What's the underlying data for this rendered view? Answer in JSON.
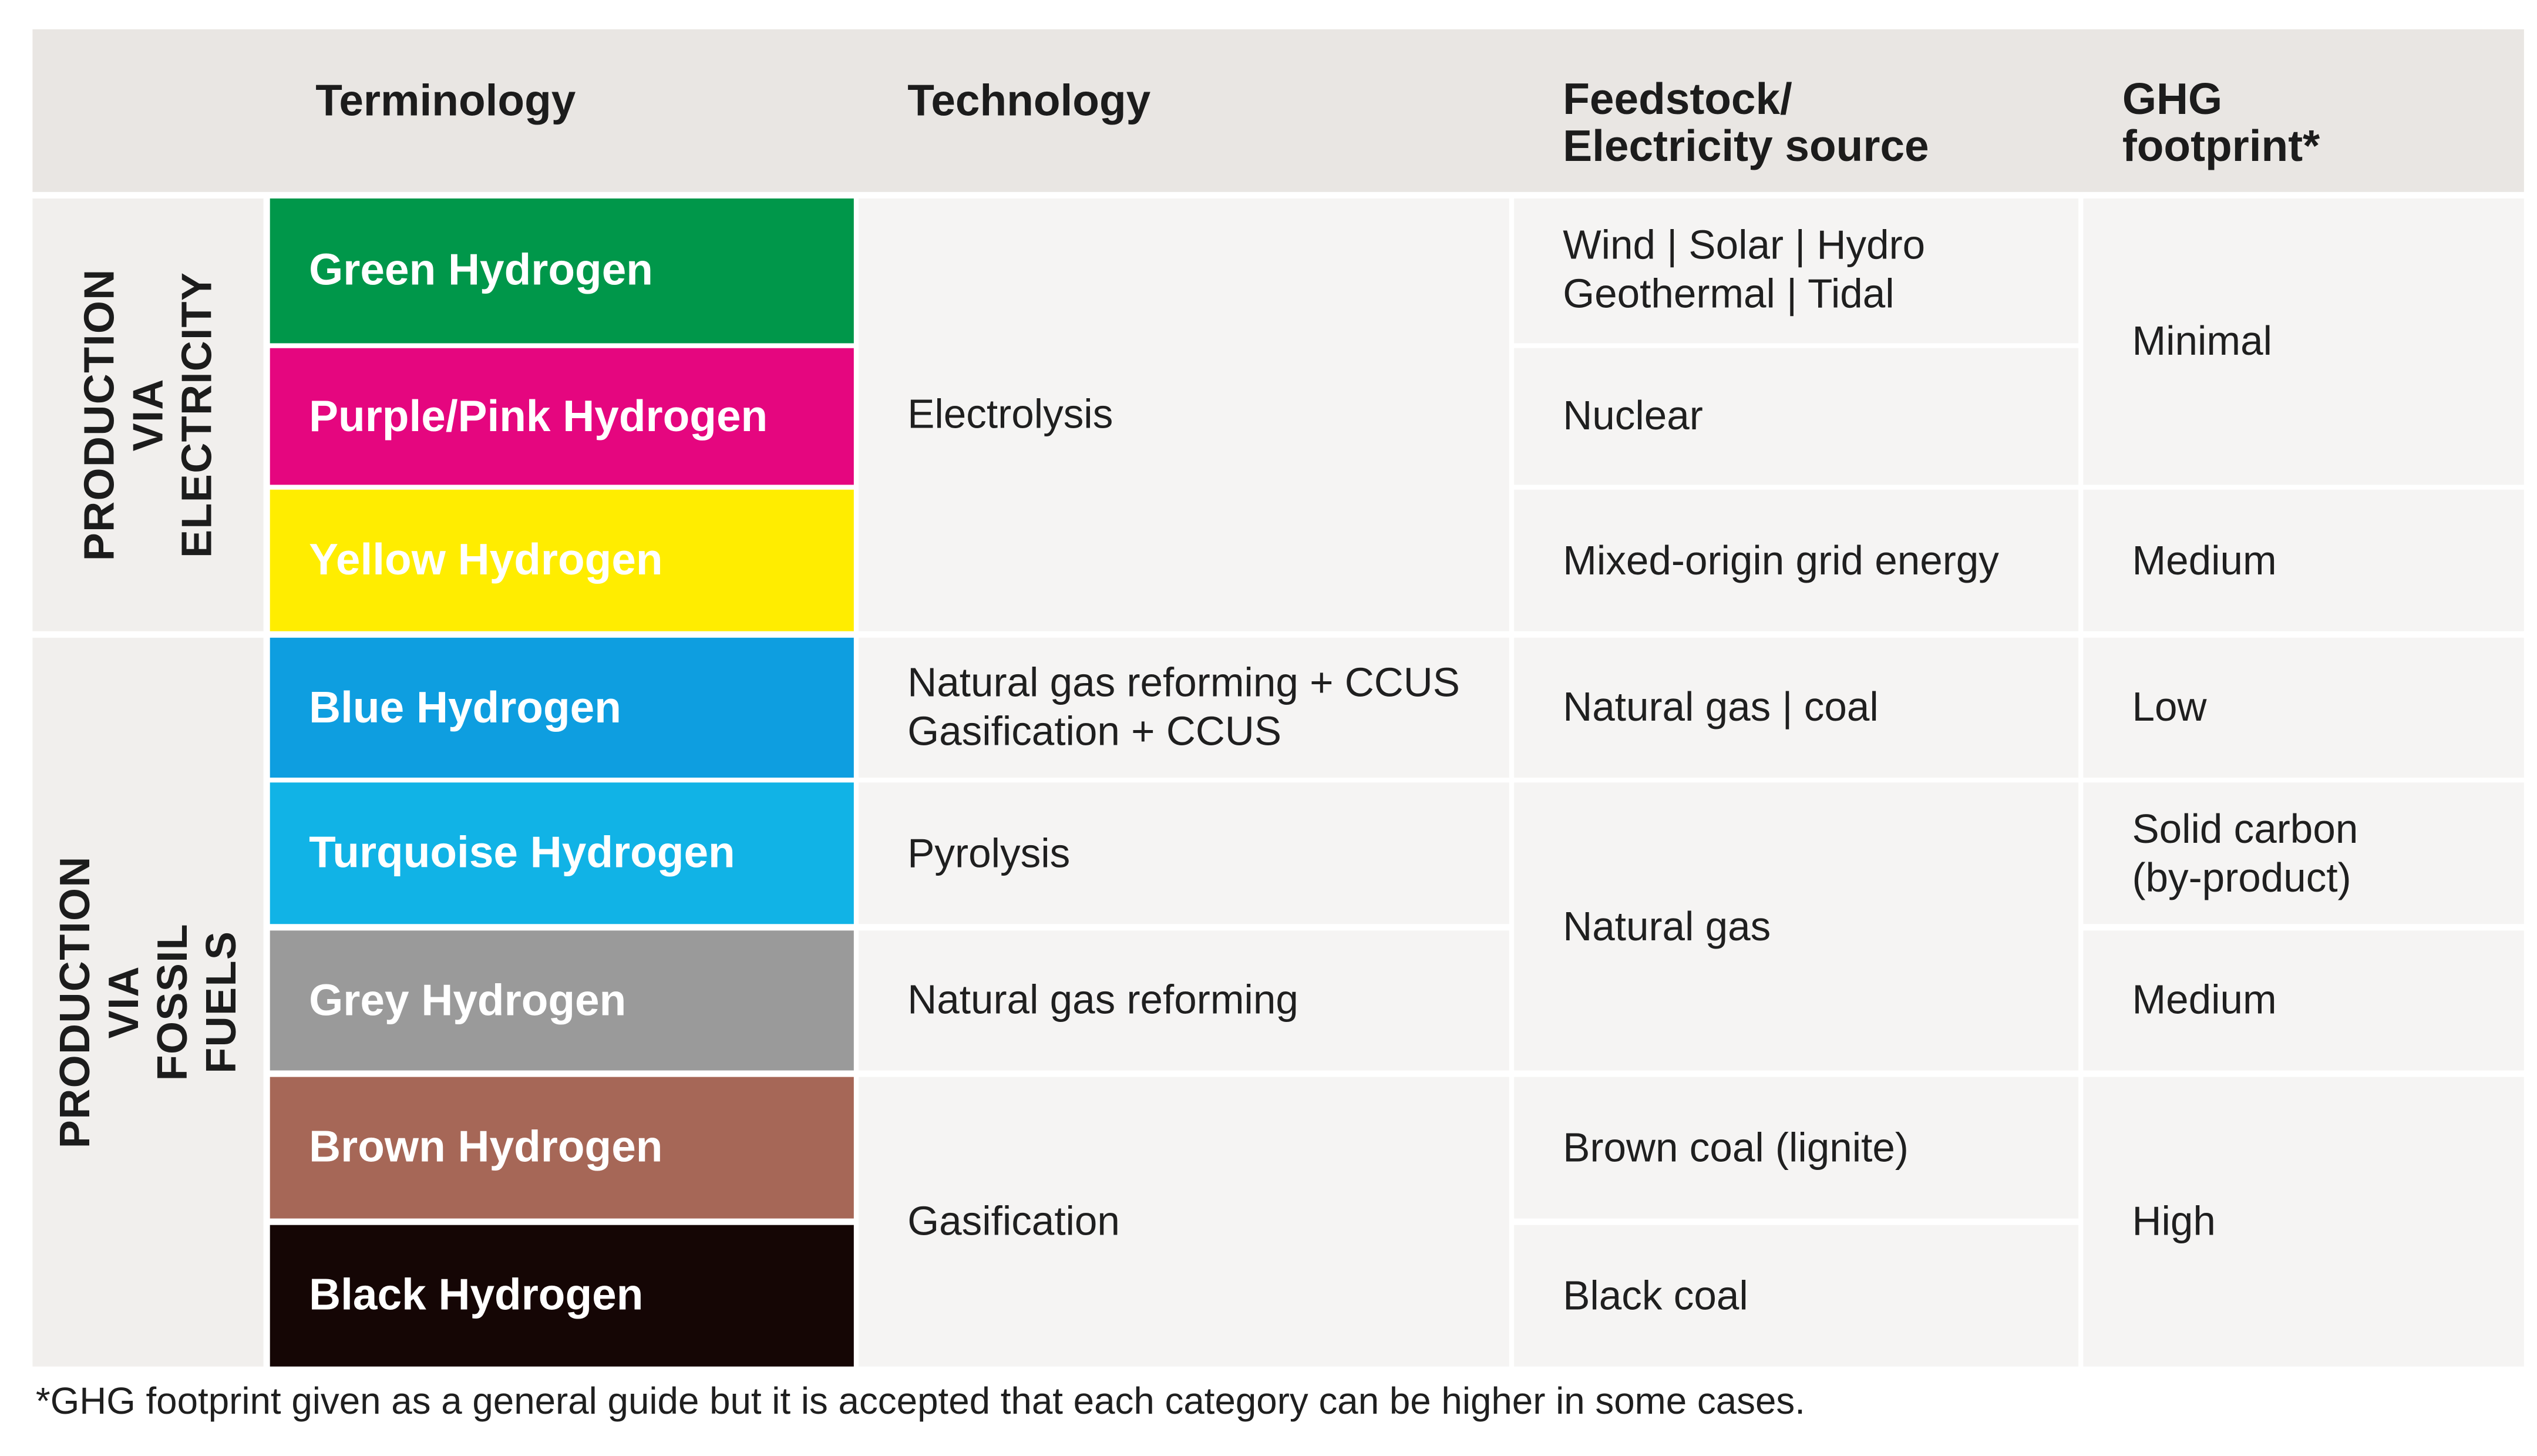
{
  "headers": {
    "terminology": "Terminology",
    "technology": "Technology",
    "feedstock": "Feedstock/\nElectricity source",
    "ghg": "GHG\nfootprint*"
  },
  "groups": {
    "electricity": "PRODUCTION\nVIA ELECTRICITY",
    "fossil": "PRODUCTION VIA\nFOSSIL FUELS"
  },
  "terms": [
    {
      "label": "Green Hydrogen",
      "color": "#00974a"
    },
    {
      "label": "Purple/Pink Hydrogen",
      "color": "#e5067f"
    },
    {
      "label": "Yellow Hydrogen",
      "color": "#ffed00"
    },
    {
      "label": "Blue Hydrogen",
      "color": "#0e9ee0"
    },
    {
      "label": "Turquoise Hydrogen",
      "color": "#11b3e6"
    },
    {
      "label": "Grey Hydrogen",
      "color": "#9a9a9a"
    },
    {
      "label": "Brown Hydrogen",
      "color": "#a66757"
    },
    {
      "label": "Black Hydrogen",
      "color": "#150605"
    }
  ],
  "technology": {
    "electrolysis": "Electrolysis",
    "blue": "Natural gas reforming + CCUS\nGasification + CCUS",
    "pyrolysis": "Pyrolysis",
    "reforming": "Natural gas reforming",
    "gasification": "Gasification"
  },
  "feedstock": {
    "renewables": "Wind | Solar | Hydro\nGeothermal | Tidal",
    "nuclear": "Nuclear",
    "grid": "Mixed-origin grid energy",
    "gas_coal": "Natural gas | coal",
    "natural_gas": "Natural gas",
    "brown_coal": "Brown coal (lignite)",
    "black_coal": "Black coal"
  },
  "ghg": {
    "minimal": "Minimal",
    "medium_grid": "Medium",
    "low": "Low",
    "solid_carbon": "Solid carbon\n(by-product)",
    "medium_grey": "Medium",
    "high": "High"
  },
  "footnote": "*GHG footprint given as a general guide but it is accepted that each category can be higher in some cases.",
  "colors": {
    "header_bg": "#e9e6e3",
    "group_bg": "#f1efed",
    "cell_bg": "#f5f4f3",
    "line": "#ffffff"
  }
}
